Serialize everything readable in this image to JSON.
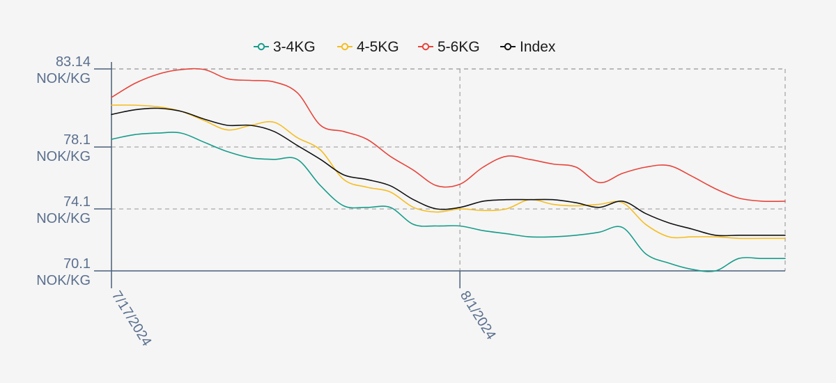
{
  "chart_data": {
    "type": "line",
    "title": "",
    "xlabel": "",
    "ylabel": "",
    "unit": "NOK/KG",
    "x": [
      0,
      1,
      2,
      3,
      4,
      5,
      6,
      7,
      8,
      9,
      10,
      11,
      12,
      13,
      14,
      15,
      16,
      17,
      18,
      19,
      20,
      21,
      22,
      23,
      24,
      25,
      26,
      27,
      28,
      29
    ],
    "x_ticks": [
      {
        "label": "7/17/2024",
        "index": 0
      },
      {
        "label": "8/1/2024",
        "index": 15
      }
    ],
    "yticks": [
      {
        "value": 70.1,
        "line1": "70.1",
        "line2": "NOK/KG"
      },
      {
        "value": 74.1,
        "line1": "74.1",
        "line2": "NOK/KG"
      },
      {
        "value": 78.1,
        "line1": "78.1",
        "line2": "NOK/KG"
      },
      {
        "value": 83.14,
        "line1": "83.14",
        "line2": "NOK/KG"
      }
    ],
    "ylim": [
      70.1,
      83.14
    ],
    "grid": true,
    "legend_position": "top-center",
    "series": [
      {
        "name": "3-4KG",
        "color": "#169c8a",
        "values": [
          78.6,
          78.9,
          79.0,
          79.0,
          78.4,
          77.8,
          77.4,
          77.3,
          77.3,
          75.6,
          74.3,
          74.2,
          74.2,
          73.1,
          73.0,
          73.0,
          72.7,
          72.5,
          72.3,
          72.3,
          72.4,
          72.6,
          72.9,
          71.2,
          70.6,
          70.2,
          70.1,
          70.9,
          70.9,
          70.9
        ]
      },
      {
        "name": "4-5KG",
        "color": "#f5bd1f",
        "values": [
          80.8,
          80.8,
          80.7,
          80.4,
          79.8,
          79.2,
          79.5,
          79.7,
          78.7,
          77.9,
          76.0,
          75.5,
          75.2,
          74.2,
          73.9,
          74.1,
          74.0,
          74.1,
          74.7,
          74.4,
          74.3,
          74.4,
          74.5,
          73.1,
          72.3,
          72.3,
          72.3,
          72.2,
          72.2,
          72.2
        ]
      },
      {
        "name": "5-6KG",
        "color": "#e8433a",
        "values": [
          81.3,
          82.2,
          82.8,
          83.1,
          83.1,
          82.5,
          82.4,
          82.3,
          81.6,
          79.5,
          79.1,
          78.6,
          77.5,
          76.6,
          75.6,
          75.7,
          76.8,
          77.5,
          77.3,
          77.0,
          76.8,
          75.8,
          76.4,
          76.8,
          76.9,
          76.2,
          75.4,
          74.8,
          74.6,
          74.6
        ]
      },
      {
        "name": "Index",
        "color": "#111111",
        "values": [
          80.2,
          80.5,
          80.6,
          80.4,
          79.9,
          79.5,
          79.5,
          79.1,
          78.2,
          77.3,
          76.3,
          76.0,
          75.6,
          74.7,
          74.1,
          74.2,
          74.6,
          74.7,
          74.7,
          74.7,
          74.5,
          74.2,
          74.6,
          73.8,
          73.2,
          72.8,
          72.4,
          72.4,
          72.4,
          72.4
        ]
      }
    ]
  }
}
